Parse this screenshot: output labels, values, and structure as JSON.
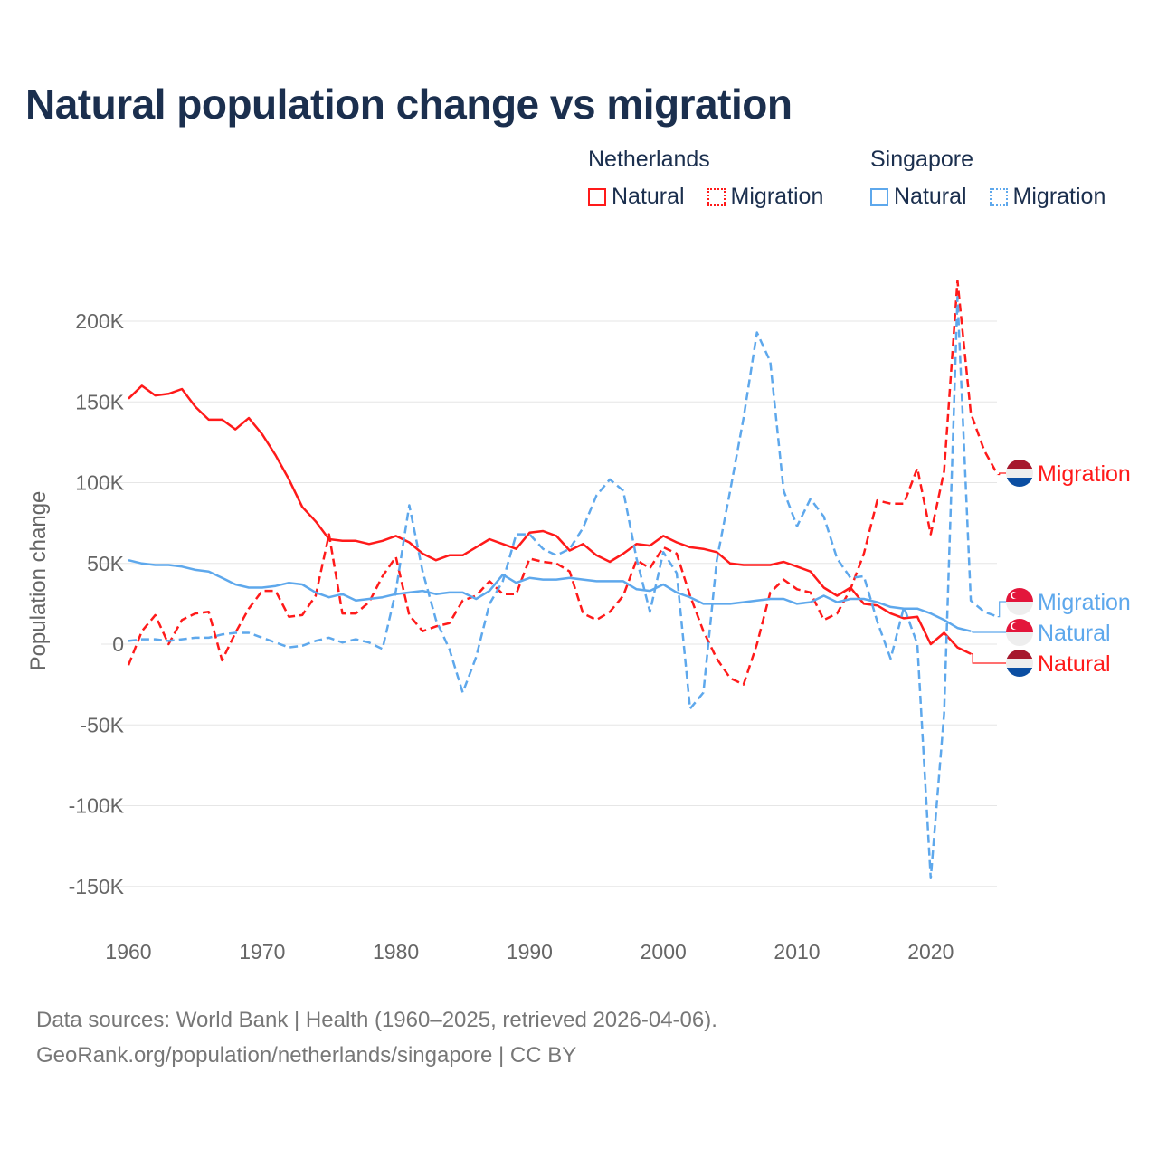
{
  "chart_data": {
    "type": "line",
    "title": "Natural population change vs migration",
    "xlabel": "",
    "ylabel": "Population change",
    "xlim": [
      1960,
      2025
    ],
    "ylim": [
      -170000,
      230000
    ],
    "x_ticks": [
      "1960",
      "1970",
      "1980",
      "1990",
      "2000",
      "2010",
      "2020"
    ],
    "y_ticks": [
      {
        "value": 200000,
        "label": "200K"
      },
      {
        "value": 150000,
        "label": "150K"
      },
      {
        "value": 100000,
        "label": "100K"
      },
      {
        "value": 50000,
        "label": "50K"
      },
      {
        "value": 0,
        "label": "0"
      },
      {
        "value": -50000,
        "label": "-50K"
      },
      {
        "value": -100000,
        "label": "-100K"
      },
      {
        "value": -150000,
        "label": "-150K"
      }
    ],
    "grid": true,
    "legend_placement": "top-right",
    "legend": {
      "groups": [
        {
          "name": "Netherlands",
          "items": [
            "Natural",
            "Migration"
          ]
        },
        {
          "name": "Singapore",
          "items": [
            "Natural",
            "Migration"
          ]
        }
      ]
    },
    "colors": {
      "Netherlands": "#ff1a1a",
      "Singapore": "#5ea8ec"
    },
    "series": [
      {
        "country": "Netherlands",
        "name": "Natural",
        "label": "Natural",
        "style": "solid",
        "start_year": 1960,
        "values": [
          152000,
          160000,
          154000,
          155000,
          158000,
          147000,
          139000,
          139000,
          133000,
          140000,
          130000,
          117000,
          102000,
          85000,
          76000,
          65000,
          64000,
          64000,
          62000,
          64000,
          67000,
          63000,
          56000,
          52000,
          55000,
          55000,
          60000,
          65000,
          62000,
          59000,
          69000,
          70000,
          67000,
          58000,
          62000,
          55000,
          51000,
          56000,
          62000,
          61000,
          67000,
          63000,
          60000,
          59000,
          57000,
          50000,
          49000,
          49000,
          49000,
          51000,
          48000,
          45000,
          35000,
          30000,
          35000,
          25000,
          24000,
          19000,
          16000,
          17000,
          0,
          7000,
          -2000,
          -6000
        ]
      },
      {
        "country": "Netherlands",
        "name": "Migration",
        "label": "Migration",
        "style": "dashed",
        "start_year": 1960,
        "values": [
          -13000,
          8000,
          18000,
          0,
          15000,
          19000,
          20000,
          -10000,
          7000,
          22000,
          33000,
          33000,
          17000,
          18000,
          30000,
          68000,
          19000,
          19000,
          26000,
          42000,
          54000,
          18000,
          8000,
          11000,
          13000,
          27000,
          30000,
          39000,
          31000,
          31000,
          53000,
          51000,
          50000,
          45000,
          19000,
          15000,
          20000,
          30000,
          52000,
          47000,
          60000,
          56000,
          30000,
          8000,
          -9000,
          -21000,
          -25000,
          0,
          32000,
          40000,
          34000,
          32000,
          15000,
          19000,
          34000,
          56000,
          89000,
          87000,
          87000,
          109000,
          68000,
          107000,
          225000,
          143000,
          120000,
          105000
        ]
      },
      {
        "country": "Singapore",
        "name": "Natural",
        "label": "Natural",
        "style": "solid",
        "start_year": 1960,
        "values": [
          52000,
          50000,
          49000,
          49000,
          48000,
          46000,
          45000,
          41000,
          37000,
          35000,
          35000,
          36000,
          38000,
          37000,
          32000,
          29000,
          31000,
          27000,
          28000,
          29000,
          31000,
          32000,
          33000,
          31000,
          32000,
          32000,
          28000,
          33000,
          43000,
          38000,
          41000,
          40000,
          40000,
          41000,
          40000,
          39000,
          39000,
          39000,
          34000,
          33000,
          37000,
          32000,
          29000,
          25000,
          25000,
          25000,
          26000,
          27000,
          28000,
          28000,
          25000,
          26000,
          30000,
          26000,
          28000,
          28000,
          26000,
          23000,
          22000,
          22000,
          19000,
          15000,
          10000,
          8000
        ]
      },
      {
        "country": "Singapore",
        "name": "Migration",
        "label": "Migration",
        "style": "dashed",
        "start_year": 1960,
        "values": [
          2000,
          3000,
          3000,
          2000,
          3000,
          4000,
          4000,
          6000,
          7000,
          7000,
          4000,
          1000,
          -2000,
          -1000,
          2000,
          4000,
          1000,
          3000,
          1000,
          -3000,
          33000,
          86000,
          45000,
          15000,
          -3000,
          -30000,
          -8000,
          25000,
          39000,
          68000,
          68000,
          59000,
          55000,
          59000,
          72000,
          92000,
          102000,
          95000,
          53000,
          20000,
          57000,
          44000,
          -40000,
          -30000,
          52000,
          95000,
          140000,
          193000,
          175000,
          95000,
          73000,
          90000,
          79000,
          53000,
          41000,
          42000,
          14000,
          -9000,
          23000,
          0,
          -145000,
          -43000,
          215000,
          27000,
          20000,
          17000
        ]
      }
    ]
  },
  "footer": {
    "line1": "Data sources: World Bank | Health (1960–2025, retrieved 2026-04-06).",
    "line2": "GeoRank.org/population/netherlands/singapore | CC BY"
  }
}
